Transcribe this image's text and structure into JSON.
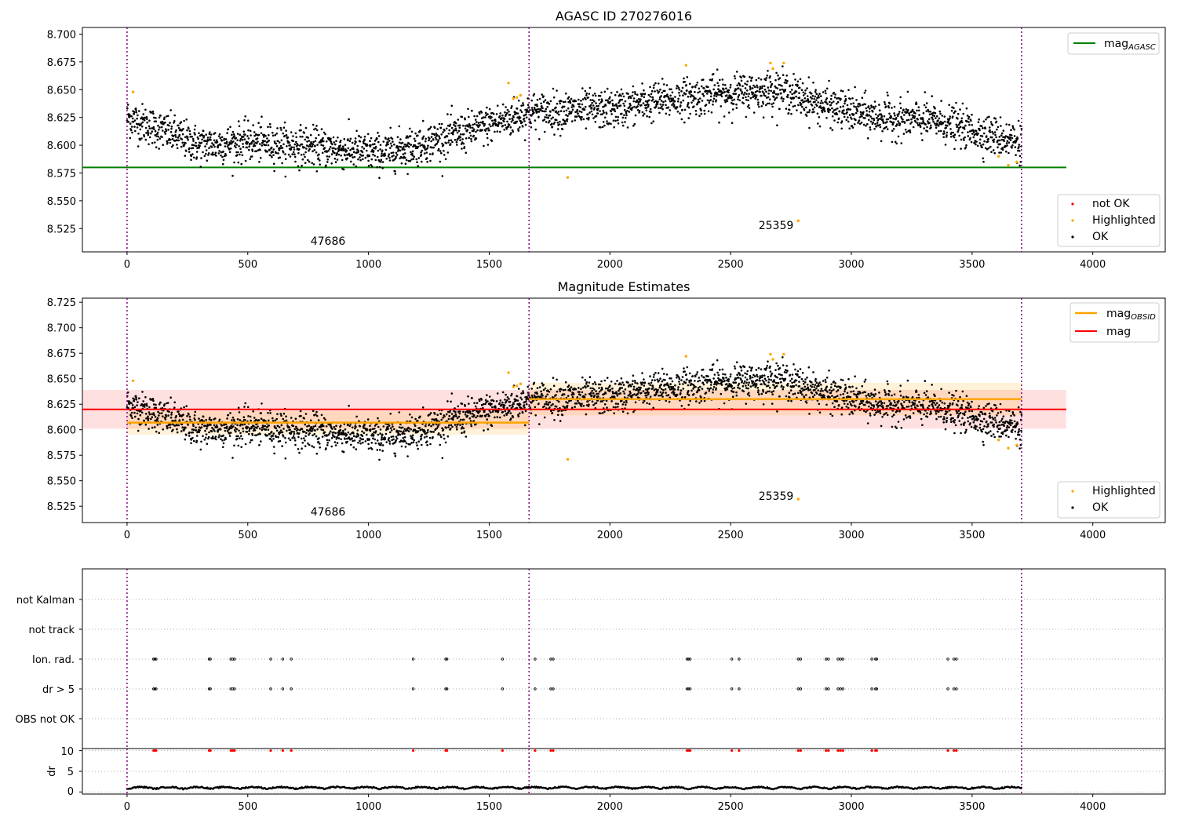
{
  "panels": {
    "top": {
      "title": "AGASC ID 270276016",
      "legend_upper": [
        {
          "label_main": "mag",
          "label_sub": "AGASC",
          "color": "#008000"
        }
      ],
      "legend_lower": [
        {
          "label": "not OK",
          "color": "#ff0000"
        },
        {
          "label": "Highlighted",
          "color": "#ffa500"
        },
        {
          "label": "OK",
          "color": "#000000"
        }
      ],
      "annotations": [
        "47686",
        "25359"
      ]
    },
    "middle": {
      "title": "Magnitude Estimates",
      "legend_upper": [
        {
          "label_main": "mag",
          "label_sub": "OBSID",
          "color": "#ffa500"
        },
        {
          "label": "mag",
          "color": "#ff0000"
        }
      ],
      "legend_lower": [
        {
          "label": "Highlighted",
          "color": "#ffa500"
        },
        {
          "label": "OK",
          "color": "#000000"
        }
      ],
      "annotations": [
        "47686",
        "25359"
      ]
    },
    "flags": {
      "rows": [
        "not Kalman",
        "not track",
        "Ion. rad.",
        "dr > 5",
        "OBS not OK"
      ]
    },
    "dr": {
      "ylabel": "dr",
      "yticks": [
        "0",
        "5",
        "10"
      ]
    }
  },
  "chart_data": [
    {
      "type": "scatter",
      "title": "AGASC ID 270276016",
      "xlabel": "",
      "ylabel": "",
      "xlim": [
        -185,
        4300
      ],
      "ylim": [
        8.504,
        8.706
      ],
      "xticks": [
        0,
        500,
        1000,
        1500,
        2000,
        2500,
        3000,
        3500,
        4000
      ],
      "yticks": [
        8.525,
        8.55,
        8.575,
        8.6,
        8.625,
        8.65,
        8.675,
        8.7
      ],
      "obsid_boundaries": [
        0,
        1665,
        3705
      ],
      "obsid_labels": [
        {
          "x": 830,
          "label": "47686"
        },
        {
          "x": 2680,
          "label": "25359"
        }
      ],
      "series": [
        {
          "name": "mag_AGASC",
          "kind": "hline",
          "y": 8.58,
          "x_range": [
            -185,
            3890
          ],
          "color": "#008000"
        },
        {
          "name": "OK",
          "kind": "points",
          "color": "#000000",
          "trend": [
            [
              0,
              8.625
            ],
            [
              150,
              8.613
            ],
            [
              300,
              8.6
            ],
            [
              500,
              8.603
            ],
            [
              700,
              8.6
            ],
            [
              900,
              8.596
            ],
            [
              1050,
              8.593
            ],
            [
              1200,
              8.6
            ],
            [
              1400,
              8.612
            ],
            [
              1600,
              8.625
            ],
            [
              1665,
              8.63
            ],
            [
              2000,
              8.632
            ],
            [
              2200,
              8.64
            ],
            [
              2400,
              8.645
            ],
            [
              2700,
              8.65
            ],
            [
              2900,
              8.635
            ],
            [
              3100,
              8.625
            ],
            [
              3350,
              8.622
            ],
            [
              3500,
              8.613
            ],
            [
              3560,
              8.61
            ],
            [
              3705,
              8.603
            ]
          ]
        },
        {
          "name": "Highlighted",
          "kind": "points",
          "color": "#ffa500",
          "points": [
            [
              25,
              8.648
            ],
            [
              1580,
              8.656
            ],
            [
              1600,
              8.642
            ],
            [
              1615,
              8.643
            ],
            [
              1630,
              8.645
            ],
            [
              1825,
              8.571
            ],
            [
              2315,
              8.672
            ],
            [
              2665,
              8.674
            ],
            [
              2675,
              8.669
            ],
            [
              2720,
              8.674
            ],
            [
              2780,
              8.532
            ],
            [
              3610,
              8.59
            ],
            [
              3650,
              8.582
            ],
            [
              3685,
              8.585
            ]
          ]
        }
      ]
    },
    {
      "type": "scatter",
      "title": "Magnitude Estimates",
      "xlabel": "",
      "ylabel": "",
      "xlim": [
        -185,
        4300
      ],
      "ylim": [
        8.509,
        8.729
      ],
      "xticks": [
        0,
        500,
        1000,
        1500,
        2000,
        2500,
        3000,
        3500,
        4000
      ],
      "yticks": [
        8.525,
        8.55,
        8.575,
        8.6,
        8.625,
        8.65,
        8.675,
        8.7,
        8.725
      ],
      "obsid_boundaries": [
        0,
        1665,
        3705
      ],
      "obsid_labels": [
        {
          "x": 830,
          "label": "47686"
        },
        {
          "x": 2680,
          "label": "25359"
        }
      ],
      "series": [
        {
          "name": "mag",
          "kind": "hline",
          "y": 8.62,
          "band": [
            8.601,
            8.639
          ],
          "x_range": [
            -185,
            3890
          ],
          "color": "#ff0000"
        },
        {
          "name": "mag_OBSID",
          "kind": "segments",
          "color": "#ffa500",
          "segments": [
            {
              "x": [
                0,
                1665
              ],
              "y": 8.607,
              "band": [
                8.595,
                8.618
              ]
            },
            {
              "x": [
                1665,
                3705
              ],
              "y": 8.63,
              "band": [
                8.614,
                8.646
              ]
            }
          ]
        }
      ]
    },
    {
      "type": "scatter",
      "title": "",
      "xlabel": "",
      "ylabel": "dr",
      "xlim": [
        -185,
        4300
      ],
      "ylim": [
        -0.5,
        10.5
      ],
      "xticks": [
        0,
        500,
        1000,
        1500,
        2000,
        2500,
        3000,
        3500,
        4000
      ],
      "yticks": [
        0,
        5,
        10
      ],
      "flag_events_x": [
        110,
        115,
        120,
        340,
        345,
        430,
        438,
        445,
        595,
        645,
        680,
        1185,
        1320,
        1325,
        1555,
        1690,
        1755,
        1765,
        2320,
        2325,
        2332,
        2505,
        2535,
        2780,
        2790,
        2895,
        2905,
        2945,
        2955,
        2965,
        3085,
        3100,
        3105,
        3400,
        3425,
        3435
      ]
    }
  ]
}
